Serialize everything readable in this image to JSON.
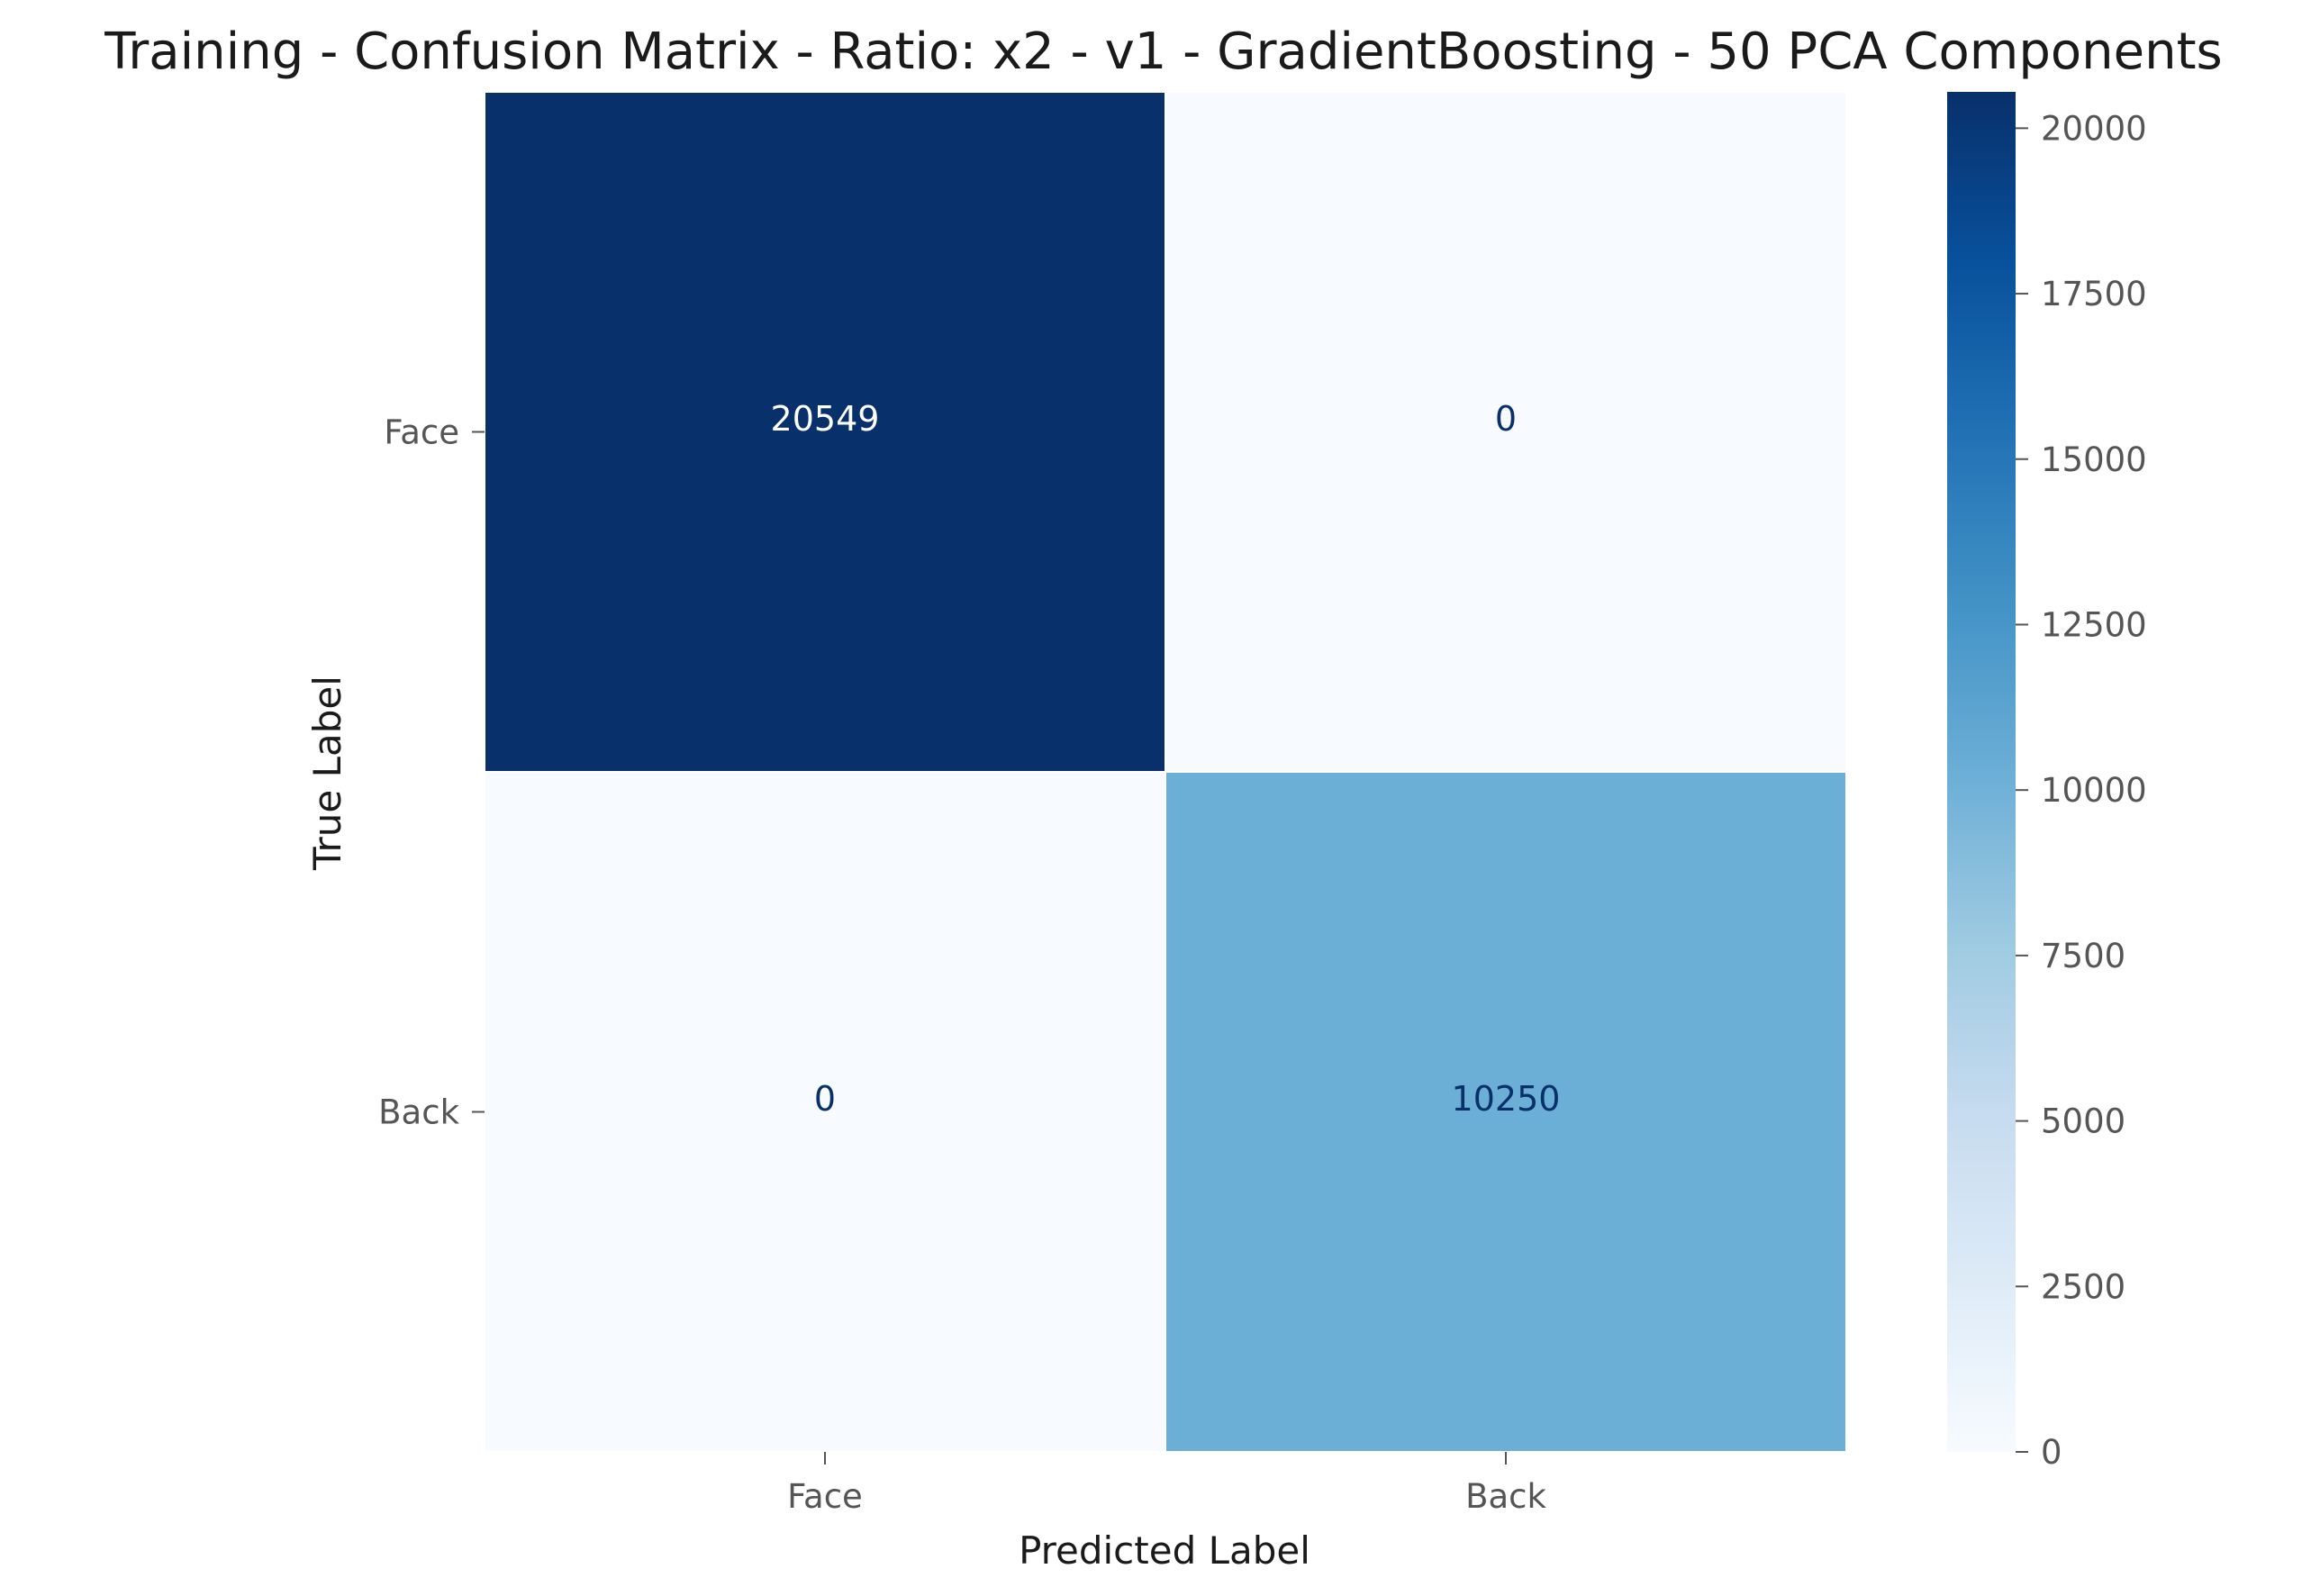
{
  "chart_data": {
    "type": "heatmap",
    "title": "Training - Confusion Matrix - Ratio: x2 - v1 - GradientBoosting - 50 PCA Components",
    "xlabel": "Predicted Label",
    "ylabel": "True Label",
    "x_categories": [
      "Face",
      "Back"
    ],
    "y_categories": [
      "Face",
      "Back"
    ],
    "values": [
      [
        20549,
        0
      ],
      [
        0,
        10250
      ]
    ],
    "colormap": "Blues",
    "colorbar": {
      "min": 0,
      "max": 20549,
      "ticks": [
        0,
        2500,
        5000,
        7500,
        10000,
        12500,
        15000,
        17500,
        20000
      ]
    },
    "grid": false,
    "legend": "none"
  }
}
